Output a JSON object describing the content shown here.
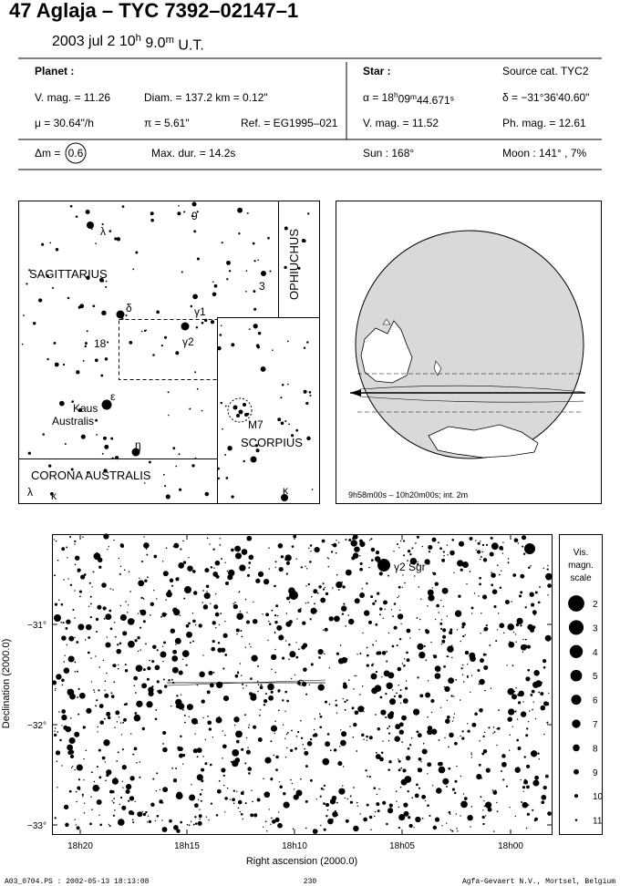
{
  "header": {
    "title": "47 Aglaja  –  TYC 7392–02147–1",
    "date": [
      "2003 jul  2  10",
      "h",
      " 9.0",
      "m",
      " U.T."
    ]
  },
  "info": {
    "planet_heading": "Planet :",
    "star_heading": "Star :",
    "source": "Source cat.  TYC2",
    "planet_vmag": "V. mag. = 11.26",
    "diameter": "Diam. = 137.2 km = 0.12\"",
    "alpha": [
      "α = 18",
      "h",
      "09",
      "m",
      "44.671",
      "s"
    ],
    "delta": "δ = −31°36'40.60\"",
    "mu": "μ =  30.64\"/h",
    "parallax": "π =  5.61\"",
    "reference": "Ref. = EG1995–021",
    "star_vmag": "V. mag. = 11.52",
    "phmag": "Ph. mag. = 12.61",
    "dm_label": "Δm =",
    "dm_value": "0.6",
    "max_duration": "Max. dur. = 14.2s",
    "sun": "Sun : 168°",
    "moon": "Moon : 141° ,  7%"
  },
  "finder": {
    "labels": [
      "λ",
      "9",
      "SAGITTARIUS",
      "3",
      "OPHIUCHUS",
      "δ",
      "γ1",
      "γ2",
      "18",
      "ε",
      "Kaus",
      "Australis",
      "η",
      "M7",
      "SCORPIUS",
      "CORONA AUSTRALIS",
      "λ",
      "κ",
      "κ"
    ]
  },
  "globe": {
    "caption": "9h58m00s – 10h20m00s; int.  2m"
  },
  "sky_chart": {
    "star_label": "γ2 Sgr",
    "y_ticks": [
      "−31°",
      "−32°",
      "−33°"
    ],
    "x_ticks": [
      "18h20",
      "18h15",
      "18h10",
      "18h05",
      "18h00"
    ],
    "y_label": "Declination (2000.0)",
    "x_label": "Right ascension (2000.0)",
    "legend_title": [
      "Vis.",
      "magn.",
      "scale"
    ],
    "legend_magnitudes": [
      2,
      3,
      4,
      5,
      6,
      7,
      8,
      9,
      10,
      11
    ]
  },
  "footer": {
    "left": "A03_0704.PS : 2002-05-13 18:13:08",
    "center": "230",
    "right": "Agfa-Gevaert N.V., Mortsel, Belgium"
  }
}
